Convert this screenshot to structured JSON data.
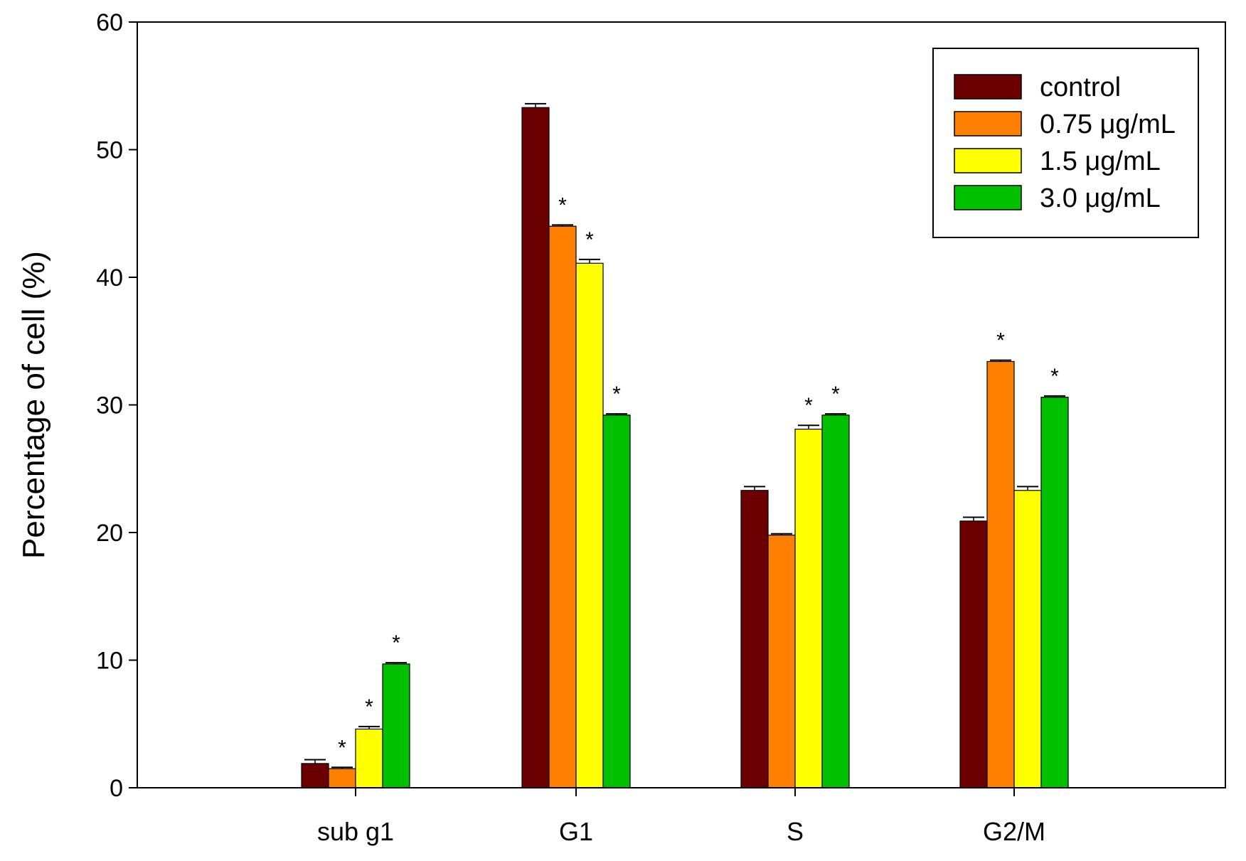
{
  "chart_data": {
    "type": "bar",
    "categories": [
      "sub g1",
      "G1",
      "S",
      "G2/M"
    ],
    "series": [
      {
        "name": "control",
        "color": "#6b0000",
        "values": [
          1.9,
          53.3,
          23.3,
          20.9
        ],
        "errors": [
          0.3,
          0.3,
          0.3,
          0.3
        ],
        "significant": [
          false,
          false,
          false,
          false
        ]
      },
      {
        "name": "0.75 μg/mL",
        "color": "#ff8000",
        "values": [
          1.5,
          44.0,
          19.8,
          33.4
        ],
        "errors": [
          0.1,
          0.1,
          0.1,
          0.1
        ],
        "significant": [
          true,
          true,
          false,
          true
        ]
      },
      {
        "name": "1.5 μg/mL",
        "color": "#ffff00",
        "values": [
          4.6,
          41.1,
          28.1,
          23.3
        ],
        "errors": [
          0.2,
          0.3,
          0.3,
          0.3
        ],
        "significant": [
          true,
          true,
          true,
          false
        ]
      },
      {
        "name": "3.0 μg/mL",
        "color": "#00c000",
        "values": [
          9.7,
          29.2,
          29.2,
          30.6
        ],
        "errors": [
          0.1,
          0.1,
          0.1,
          0.1
        ],
        "significant": [
          true,
          true,
          true,
          true
        ]
      }
    ],
    "significance_marker": "*",
    "xlabel": "",
    "ylabel": "Percentage of cell (%)",
    "ylim": [
      0,
      60
    ],
    "yticks": [
      0,
      10,
      20,
      30,
      40,
      50,
      60
    ],
    "grid": false,
    "legend_position": "top-right"
  }
}
